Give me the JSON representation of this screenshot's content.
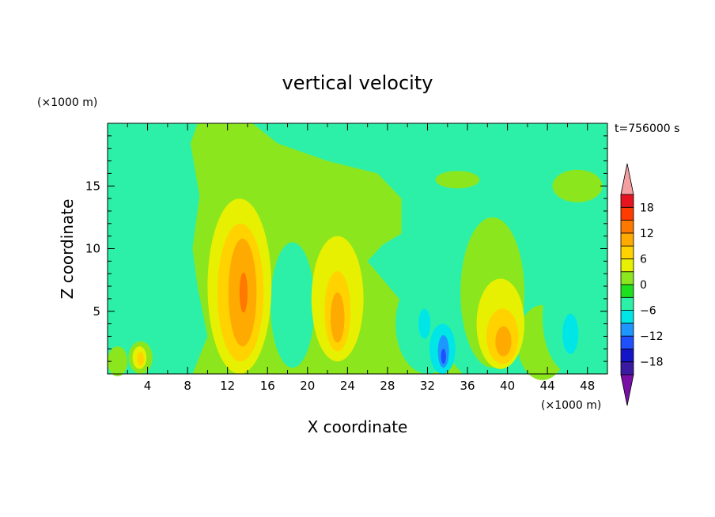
{
  "chart_data": {
    "type": "heatmap",
    "title": "vertical velocity",
    "time_label": "t=756000 s",
    "xlabel": "X coordinate",
    "ylabel": "Z coordinate",
    "x_unit": "(×1000 m)",
    "y_unit": "(×1000 m)",
    "xlim": [
      0,
      50
    ],
    "ylim": [
      0,
      20
    ],
    "x_ticks": [
      4,
      8,
      12,
      16,
      20,
      24,
      28,
      32,
      36,
      40,
      44,
      48
    ],
    "y_ticks": [
      5,
      10,
      15
    ],
    "colorbar": {
      "levels": [
        -21,
        -18,
        -15,
        -12,
        -9,
        -6,
        -3,
        0,
        3,
        6,
        9,
        12,
        15,
        18,
        21
      ],
      "tick_values": [
        -18,
        -12,
        -6,
        0,
        6,
        12,
        18
      ],
      "colors": [
        "#7a0fa6",
        "#3a1aa0",
        "#1414c8",
        "#1e50ff",
        "#1e96ff",
        "#00e6e6",
        "#2cf0a8",
        "#1ee01e",
        "#8ce61e",
        "#e6f000",
        "#ffd200",
        "#ffaa00",
        "#ff7800",
        "#ff3c00",
        "#e6141e",
        "#f4a0a0"
      ],
      "extend": "both"
    },
    "features": [
      {
        "type": "updraft",
        "x_km": 3.2,
        "z_km": 1.2,
        "w_max": 5
      },
      {
        "type": "updraft",
        "x_km": 13.5,
        "z_km": 6.5,
        "w_max": 13
      },
      {
        "type": "updraft",
        "x_km": 23.0,
        "z_km": 5.0,
        "w_max": 9
      },
      {
        "type": "updraft",
        "x_km": 39.5,
        "z_km": 3.0,
        "w_max": 9
      },
      {
        "type": "downdraft",
        "x_km": 33.5,
        "z_km": 1.8,
        "w_min": -13
      },
      {
        "type": "downdraft",
        "x_km": 31.5,
        "z_km": 4.0,
        "w_min": -7
      },
      {
        "type": "downdraft",
        "x_km": 47.0,
        "z_km": 3.5,
        "w_min": -8
      },
      {
        "type": "downdraft",
        "x_km": 5.0,
        "z_km": 7.0,
        "w_min": -4
      }
    ]
  }
}
